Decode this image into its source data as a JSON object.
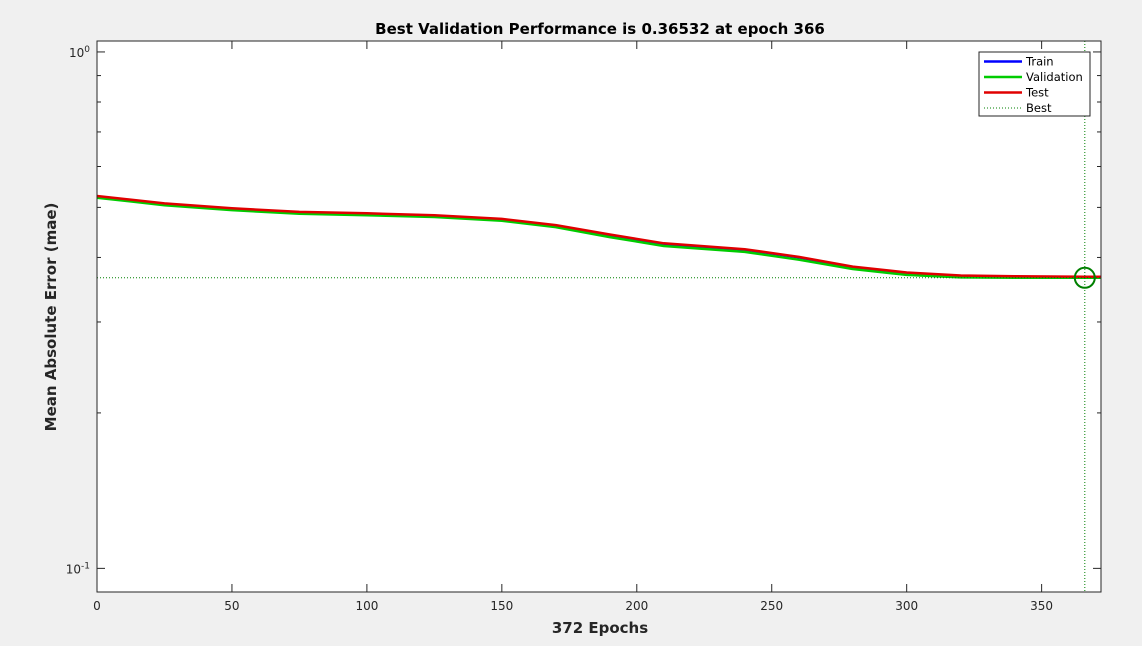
{
  "chart_data": {
    "type": "line",
    "title": "Best Validation Performance is 0.36532 at epoch 366",
    "xlabel": "372 Epochs",
    "ylabel": "Mean Absolute Error  (mae)",
    "x_scale": "linear",
    "y_scale": "log",
    "xlim": [
      0,
      372
    ],
    "ylim": [
      0.09,
      1.05
    ],
    "x_ticks": [
      0,
      50,
      100,
      150,
      200,
      250,
      300,
      350
    ],
    "x_tick_labels": [
      "0",
      "50",
      "100",
      "150",
      "200",
      "250",
      "300",
      "350"
    ],
    "y_ticks": [
      {
        "value": 1.0,
        "base": "10",
        "exp": "0"
      },
      {
        "value": 0.1,
        "base": "10",
        "exp": "-1"
      }
    ],
    "grid": false,
    "legend_position": "top-right",
    "x": [
      0,
      25,
      50,
      75,
      100,
      125,
      150,
      170,
      190,
      210,
      240,
      260,
      280,
      300,
      320,
      340,
      366,
      372
    ],
    "series": [
      {
        "name": "Train",
        "color": "#0000ff",
        "values": [
          0.525,
          0.508,
          0.497,
          0.489,
          0.486,
          0.482,
          0.474,
          0.461,
          0.442,
          0.425,
          0.414,
          0.4,
          0.383,
          0.373,
          0.368,
          0.367,
          0.366,
          0.366
        ]
      },
      {
        "name": "Validation",
        "color": "#00cc00",
        "values": [
          0.522,
          0.505,
          0.494,
          0.486,
          0.483,
          0.479,
          0.471,
          0.458,
          0.438,
          0.421,
          0.41,
          0.396,
          0.38,
          0.37,
          0.366,
          0.3655,
          0.36532,
          0.3653
        ]
      },
      {
        "name": "Test",
        "color": "#e00000",
        "values": [
          0.526,
          0.509,
          0.498,
          0.49,
          0.487,
          0.483,
          0.475,
          0.462,
          0.443,
          0.426,
          0.415,
          0.401,
          0.384,
          0.374,
          0.369,
          0.368,
          0.367,
          0.367
        ]
      }
    ],
    "best": {
      "name": "Best",
      "epoch": 366,
      "value": 0.36532,
      "color": "#008000"
    }
  }
}
